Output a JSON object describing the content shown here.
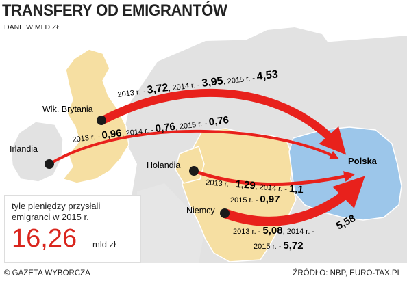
{
  "chart_data": {
    "type": "flow-map",
    "title": "TRANSFERY OD EMIGRANTÓW",
    "subtitle": "DANE W MLD ZŁ",
    "destination": "Polska",
    "unit": "mld zł",
    "flows": [
      {
        "origin": "Wlk. Brytania",
        "values": [
          {
            "year": "2013 r.",
            "value": "3,72"
          },
          {
            "year": "2014 r.",
            "value": "3,95"
          },
          {
            "year": "2015 r.",
            "value": "4,53"
          }
        ]
      },
      {
        "origin": "Irlandia",
        "values": [
          {
            "year": "2013 r.",
            "value": "0,96"
          },
          {
            "year": "2014 r.",
            "value": "0,76"
          },
          {
            "year": "2015 r.",
            "value": "0,76"
          }
        ]
      },
      {
        "origin": "Holandia",
        "values": [
          {
            "year": "2013 r.",
            "value": "1,29"
          },
          {
            "year": "2014 r.",
            "value": "1,1"
          },
          {
            "year": "2015 r.",
            "value": "0,97"
          }
        ]
      },
      {
        "origin": "Niemcy",
        "values": [
          {
            "year": "2013 r.",
            "value": "5,08"
          },
          {
            "year": "2014 r.",
            "value": "5,58"
          },
          {
            "year": "2015 r.",
            "value": "5,72"
          }
        ]
      }
    ],
    "total_caption": "tyle pieniędzy przysłali emigranci w 2015 r.",
    "total_value": "16,26",
    "total_unit": "mld zł",
    "source_left": "© GAZETA WYBORCZA",
    "source_right": "ŹRÓDŁO: NBP, EURO-TAX.PL",
    "colors": {
      "land": "#e2e2e2",
      "uk": "#f6dfa2",
      "poland": "#9cc6ea",
      "germany": "#f6dfa2",
      "arrow": "#e8211c",
      "pin": "#1a1a1a"
    }
  }
}
